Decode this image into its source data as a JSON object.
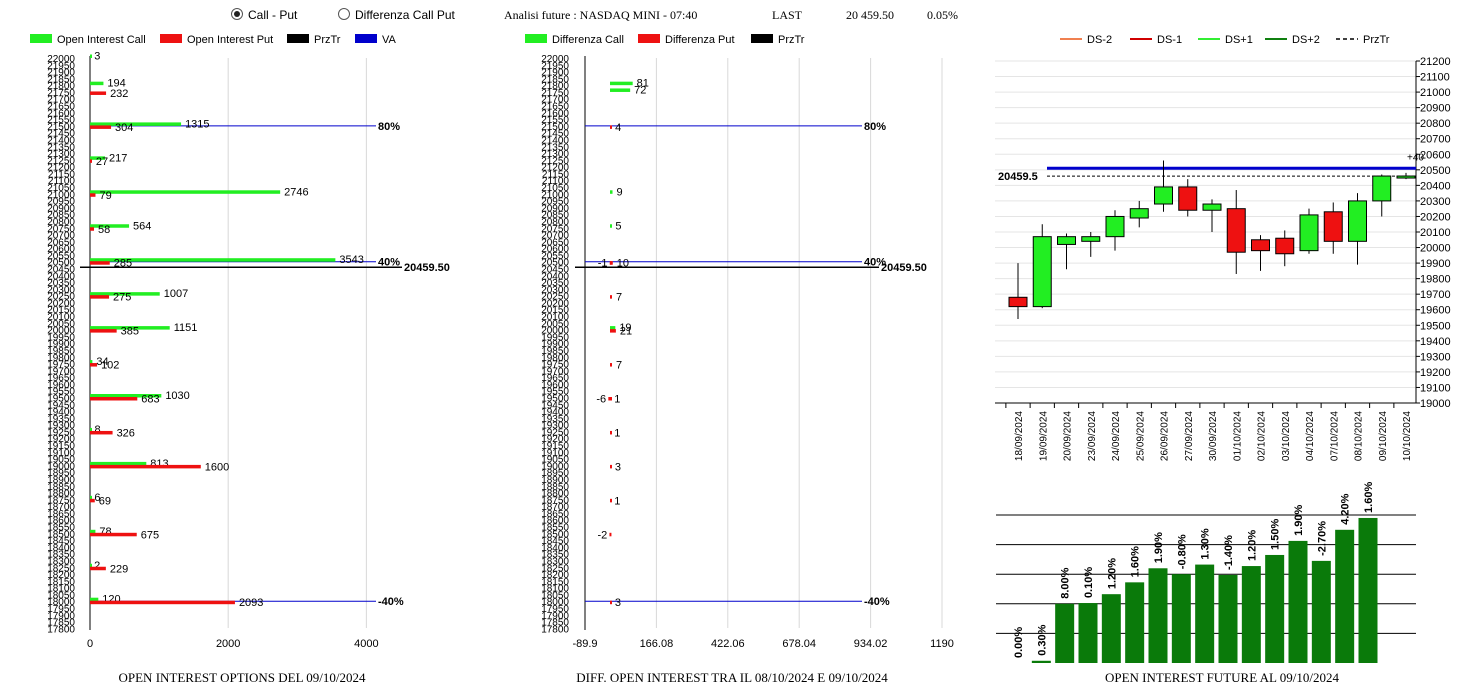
{
  "header": {
    "radio_call_put": "Call - Put",
    "radio_diff": "Differenza Call Put",
    "selected": "call_put",
    "title": "Analisi future : NASDAQ MINI - 07:40",
    "last_label": "LAST",
    "last_value": "20 459.50",
    "change": "0.05%"
  },
  "colors": {
    "green": "#22ee22",
    "red": "#ee1111",
    "black": "#000000",
    "blue": "#0000cc",
    "darkgreen": "#0a7a0a"
  },
  "chart_data": [
    {
      "id": "oi_options",
      "type": "bar",
      "orientation": "horizontal",
      "title": "OPEN INTEREST OPTIONS DEL 09/10/2024",
      "legend": [
        "Open Interest Call",
        "Open Interest Put",
        "PrzTr",
        "VA"
      ],
      "y_ticks": [
        "22000",
        "21950",
        "21900",
        "21850",
        "21800",
        "21750",
        "21700",
        "21650",
        "21600",
        "21550",
        "21500",
        "21450",
        "21400",
        "21350",
        "21300",
        "21250",
        "21200",
        "21150",
        "21100",
        "21050",
        "21000",
        "20950",
        "20900",
        "20850",
        "20800",
        "20750",
        "20700",
        "20650",
        "20600",
        "20550",
        "20500",
        "20450",
        "20400",
        "20350",
        "20300",
        "20250",
        "20200",
        "20150",
        "20100",
        "20050",
        "20000",
        "19950",
        "19900",
        "19850",
        "19800",
        "19750",
        "19700",
        "19650",
        "19600",
        "19550",
        "19500",
        "19450",
        "19400",
        "19350",
        "19300",
        "19250",
        "19200",
        "19150",
        "19100",
        "19050",
        "19000",
        "18950",
        "18900",
        "18850",
        "18800",
        "18750",
        "18700",
        "18650",
        "18600",
        "18550",
        "18500",
        "18450",
        "18400",
        "18350",
        "18300",
        "18250",
        "18200",
        "18150",
        "18100",
        "18050",
        "18000",
        "17950",
        "17900",
        "17850",
        "17800"
      ],
      "x_ticks": [
        "0",
        "2000",
        "4000"
      ],
      "xlim": [
        0,
        4400
      ],
      "call": [
        {
          "strike": 22000,
          "value": 3
        },
        {
          "strike": 21800,
          "value": 194
        },
        {
          "strike": 21500,
          "value": 1315
        },
        {
          "strike": 21250,
          "value": 217
        },
        {
          "strike": 21000,
          "value": 2746
        },
        {
          "strike": 20750,
          "value": 564
        },
        {
          "strike": 20500,
          "value": 3543
        },
        {
          "strike": 20250,
          "value": 1007
        },
        {
          "strike": 20000,
          "value": 1151
        },
        {
          "strike": 19750,
          "value": 34
        },
        {
          "strike": 19500,
          "value": 1030
        },
        {
          "strike": 19250,
          "value": 8
        },
        {
          "strike": 19000,
          "value": 813
        },
        {
          "strike": 18750,
          "value": 6
        },
        {
          "strike": 18500,
          "value": 78
        },
        {
          "strike": 18250,
          "value": 2
        },
        {
          "strike": 18000,
          "value": 120
        }
      ],
      "put": [
        {
          "strike": 21750,
          "value": 232
        },
        {
          "strike": 21500,
          "value": 304
        },
        {
          "strike": 21250,
          "value": 27
        },
        {
          "strike": 21000,
          "value": 79
        },
        {
          "strike": 20750,
          "value": 58
        },
        {
          "strike": 20500,
          "value": 285
        },
        {
          "strike": 20250,
          "value": 275
        },
        {
          "strike": 20000,
          "value": 385
        },
        {
          "strike": 19750,
          "value": 102
        },
        {
          "strike": 19500,
          "value": 683
        },
        {
          "strike": 19250,
          "value": 326
        },
        {
          "strike": 19000,
          "value": 1600
        },
        {
          "strike": 18750,
          "value": 69
        },
        {
          "strike": 18500,
          "value": 675
        },
        {
          "strike": 18250,
          "value": 229
        },
        {
          "strike": 18000,
          "value": 2093
        }
      ],
      "va_lines": [
        {
          "strike": 21500,
          "label": "80%"
        },
        {
          "strike": 20500,
          "label": "40%"
        },
        {
          "strike": 18000,
          "label": "-40%"
        }
      ],
      "price_line": {
        "value": 20459.5,
        "label": "20459.50"
      }
    },
    {
      "id": "diff_oi",
      "type": "bar",
      "orientation": "horizontal",
      "title": "DIFF. OPEN INTEREST TRA IL 08/10/2024 E 09/10/2024",
      "legend": [
        "Differenza Call",
        "Differenza Put",
        "PrzTr"
      ],
      "y_ticks": [
        "22000",
        "21950",
        "21900",
        "21850",
        "21800",
        "21750",
        "21700",
        "21650",
        "21600",
        "21550",
        "21500",
        "21450",
        "21400",
        "21350",
        "21300",
        "21250",
        "21200",
        "21150",
        "21100",
        "21050",
        "21000",
        "20950",
        "20900",
        "20850",
        "20800",
        "20750",
        "20700",
        "20650",
        "20600",
        "20550",
        "20500",
        "20450",
        "20400",
        "20350",
        "20300",
        "20250",
        "20200",
        "20150",
        "20100",
        "20050",
        "20000",
        "19950",
        "19900",
        "19850",
        "19800",
        "19750",
        "19700",
        "19650",
        "19600",
        "19550",
        "19500",
        "19450",
        "19400",
        "19350",
        "19300",
        "19250",
        "19200",
        "19150",
        "19100",
        "19050",
        "19000",
        "18950",
        "18900",
        "18850",
        "18800",
        "18750",
        "18700",
        "18650",
        "18600",
        "18550",
        "18500",
        "18450",
        "18400",
        "18350",
        "18300",
        "18250",
        "18200",
        "18150",
        "18100",
        "18050",
        "18000",
        "17950",
        "17900",
        "17850",
        "17800"
      ],
      "x_ticks": [
        "-89.9",
        "166.08",
        "422.06",
        "678.04",
        "934.02",
        "1190"
      ],
      "xlim": [
        -89.9,
        1190
      ],
      "call": [
        {
          "strike": 21800,
          "value": 81
        },
        {
          "strike": 21750,
          "value": 72
        },
        {
          "strike": 21000,
          "value": 9
        },
        {
          "strike": 20750,
          "value": 5
        },
        {
          "strike": 20000,
          "value": 19
        }
      ],
      "put": [
        {
          "strike": 21500,
          "value": 4
        },
        {
          "strike": 20500,
          "value": -1
        },
        {
          "strike": 20500,
          "value": 10
        },
        {
          "strike": 20250,
          "value": 7
        },
        {
          "strike": 20000,
          "value": 21
        },
        {
          "strike": 19750,
          "value": 7
        },
        {
          "strike": 19500,
          "value": -6
        },
        {
          "strike": 19500,
          "value": 1
        },
        {
          "strike": 19250,
          "value": 1
        },
        {
          "strike": 19000,
          "value": 3
        },
        {
          "strike": 18750,
          "value": 1
        },
        {
          "strike": 18500,
          "value": -2
        },
        {
          "strike": 18000,
          "value": 3
        }
      ],
      "va_lines": [
        {
          "strike": 21500,
          "label": "80%"
        },
        {
          "strike": 20500,
          "label": "40%"
        },
        {
          "strike": 18000,
          "label": "-40%"
        }
      ],
      "price_line": {
        "value": 20459.5,
        "label": "20459.50"
      }
    },
    {
      "id": "candles",
      "type": "candlestick",
      "legend": [
        "DS-2",
        "DS-1",
        "DS+1",
        "DS+2",
        "PrzTr"
      ],
      "y_ticks": [
        "21200",
        "21100",
        "21000",
        "20900",
        "20800",
        "20700",
        "20600",
        "20500",
        "20400",
        "20300",
        "20200",
        "20100",
        "20000",
        "19900",
        "19800",
        "19700",
        "19600",
        "19500",
        "19400",
        "19300",
        "19200",
        "19100",
        "19000"
      ],
      "ylim": [
        19000,
        21200
      ],
      "dates": [
        "18/09/2024",
        "19/09/2024",
        "20/09/2024",
        "23/09/2024",
        "24/09/2024",
        "25/09/2024",
        "26/09/2024",
        "27/09/2024",
        "30/09/2024",
        "01/10/2024",
        "02/10/2024",
        "03/10/2024",
        "04/10/2024",
        "07/10/2024",
        "08/10/2024",
        "09/10/2024",
        "10/10/2024"
      ],
      "ohlc": [
        [
          19680,
          19900,
          19540,
          19620
        ],
        [
          19620,
          20150,
          19610,
          20070
        ],
        [
          20020,
          20090,
          19860,
          20070
        ],
        [
          20040,
          20100,
          19940,
          20070
        ],
        [
          20070,
          20240,
          19980,
          20200
        ],
        [
          20190,
          20300,
          20130,
          20250
        ],
        [
          20280,
          20560,
          20230,
          20390
        ],
        [
          20390,
          20440,
          20200,
          20240
        ],
        [
          20240,
          20310,
          20100,
          20280
        ],
        [
          20250,
          20370,
          19830,
          19970
        ],
        [
          20050,
          20080,
          19850,
          19980
        ],
        [
          20060,
          20110,
          19880,
          19960
        ],
        [
          19980,
          20250,
          19960,
          20210
        ],
        [
          20230,
          20290,
          19960,
          20040
        ],
        [
          20040,
          20350,
          19890,
          20300
        ],
        [
          20300,
          20470,
          20200,
          20460
        ],
        [
          20450,
          20480,
          20440,
          20460
        ]
      ],
      "blue_level": 20510,
      "price_line": {
        "value": 20459.5,
        "label": "20459.5"
      },
      "right_label": "+40"
    },
    {
      "id": "oi_future",
      "type": "bar",
      "title": "OPEN INTEREST FUTURE AL 09/10/2024",
      "categories": [
        "18/09/2024",
        "19/09/2024",
        "20/09/2024",
        "23/09/2024",
        "24/09/2024",
        "25/09/2024",
        "26/09/2024",
        "27/09/2024",
        "30/09/2024",
        "01/10/2024",
        "02/10/2024",
        "03/10/2024",
        "04/10/2024",
        "07/10/2024",
        "08/10/2024",
        "09/10/2024"
      ],
      "labels": [
        "0.00%",
        "0.30%",
        "8.00%",
        "0.10%",
        "1.20%",
        "1.60%",
        "1.90%",
        "-0.80%",
        "1.30%",
        "-1.40%",
        "1.20%",
        "1.50%",
        "1.90%",
        "-2.70%",
        "4.20%",
        "1.60%"
      ],
      "values": [
        0.0,
        0.3,
        8.0,
        8.1,
        9.3,
        10.9,
        12.8,
        12.0,
        13.3,
        11.9,
        13.1,
        14.6,
        16.5,
        13.8,
        18.0,
        19.6
      ]
    }
  ]
}
